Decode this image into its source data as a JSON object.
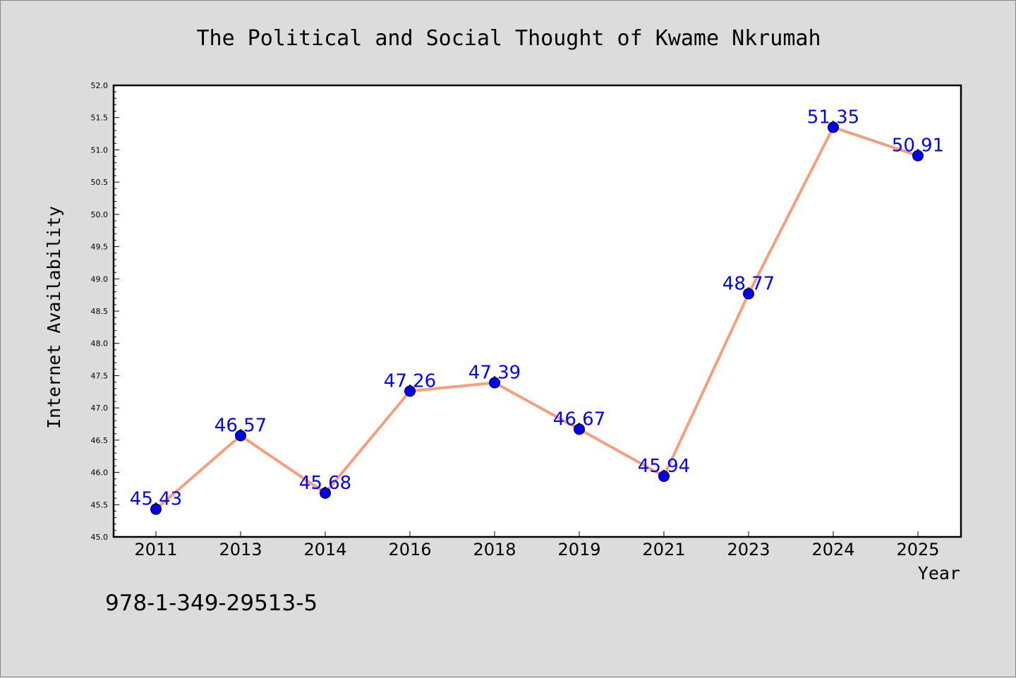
{
  "chart_data": {
    "type": "line",
    "title": "The Political and Social Thought of Kwame Nkrumah",
    "xlabel": "Year",
    "ylabel": "Internet Availability",
    "categories": [
      "2011",
      "2013",
      "2014",
      "2016",
      "2018",
      "2019",
      "2021",
      "2023",
      "2024",
      "2025"
    ],
    "series": [
      {
        "values": [
          45.43,
          46.57,
          45.68,
          47.26,
          47.39,
          46.67,
          45.94,
          48.77,
          51.35,
          50.91
        ],
        "data_labels": [
          "45.43",
          "46.57",
          "45.68",
          "47.26",
          "47.39",
          "46.67",
          "45.94",
          "48.77",
          "51.35",
          "50.91"
        ]
      }
    ],
    "ylim": [
      45.0,
      52.0
    ],
    "yticks": [
      45.0,
      45.5,
      46.0,
      46.5,
      47.0,
      47.5,
      48.0,
      48.5,
      49.0,
      49.5,
      50.0,
      50.5,
      51.0,
      51.5,
      52.0
    ],
    "ytick_labels": [
      "45.0",
      "45.5",
      "46.0",
      "46.5",
      "47.0",
      "47.5",
      "48.0",
      "48.5",
      "49.0",
      "49.5",
      "50.0",
      "50.5",
      "51.0",
      "51.5",
      "52.0"
    ],
    "grid": false,
    "legend": "none",
    "colors": {
      "line": "#f4a07e",
      "marker": "#0000ee",
      "label": "#0000ff"
    }
  },
  "footer": {
    "isbn": "978-1-349-29513-5"
  }
}
